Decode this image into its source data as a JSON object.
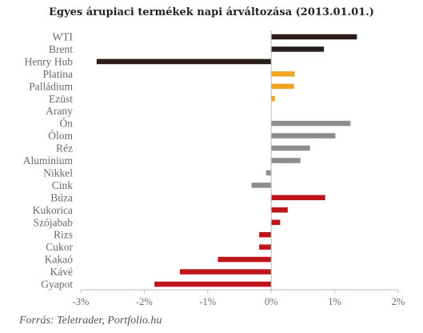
{
  "chart_data": {
    "type": "bar",
    "orientation": "horizontal",
    "title": "Egyes árupiaci termékek napi árváltozása (2013.01.01.)",
    "categories": [
      "WTI",
      "Brent",
      "Henry Hub",
      "Platina",
      "Palládium",
      "Ezüst",
      "Arany",
      "Ón",
      "Ólom",
      "Réz",
      "Alumínium",
      "Nikkel",
      "Cink",
      "Búza",
      "Kukorica",
      "Szójabab",
      "Rizs",
      "Cukor",
      "Kakaó",
      "Kávé",
      "Gyapot"
    ],
    "values": [
      1.35,
      0.83,
      -2.75,
      0.37,
      0.36,
      0.06,
      0.0,
      1.25,
      1.01,
      0.61,
      0.46,
      -0.08,
      -0.31,
      0.85,
      0.26,
      0.14,
      -0.19,
      -0.19,
      -0.84,
      -1.44,
      -1.84
    ],
    "colors": [
      "#2b1c1e",
      "#2b1c1e",
      "#2b1c1e",
      "#f0a422",
      "#f0a422",
      "#f0a422",
      "#f0a422",
      "#8c8c8c",
      "#8c8c8c",
      "#8c8c8c",
      "#8c8c8c",
      "#8c8c8c",
      "#8c8c8c",
      "#c0141b",
      "#c0141b",
      "#c0141b",
      "#c0141b",
      "#c0141b",
      "#c0141b",
      "#c0141b",
      "#c0141b"
    ],
    "xlim": [
      -3,
      2
    ],
    "xticks": [
      -3,
      -2,
      -1,
      0,
      1,
      2
    ],
    "xtick_labels": [
      "-3%",
      "-2%",
      "-1%",
      "0%",
      "1%",
      "2%"
    ],
    "grid": false,
    "legend": "none"
  },
  "source_text": "Forrás: Teletrader, Portfolio.hu"
}
